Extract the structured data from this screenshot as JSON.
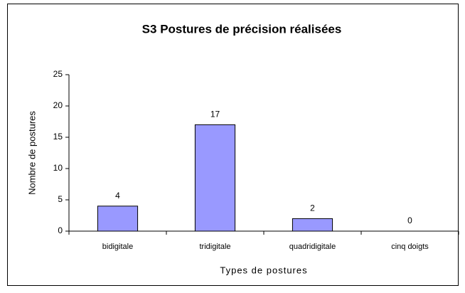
{
  "chart_data": {
    "type": "bar",
    "title": "S3 Postures de précision réalisées",
    "categories": [
      "bidigitale",
      "tridigitale",
      "quadridigitale",
      "cinq doigts"
    ],
    "values": [
      4,
      17,
      2,
      0
    ],
    "color": "#9999ff",
    "xlabel": "Types de postures",
    "ylabel": "Nombre de postures",
    "ylim": [
      0,
      25
    ],
    "yticks": [
      0,
      5,
      10,
      15,
      20,
      25
    ],
    "grid": false
  }
}
